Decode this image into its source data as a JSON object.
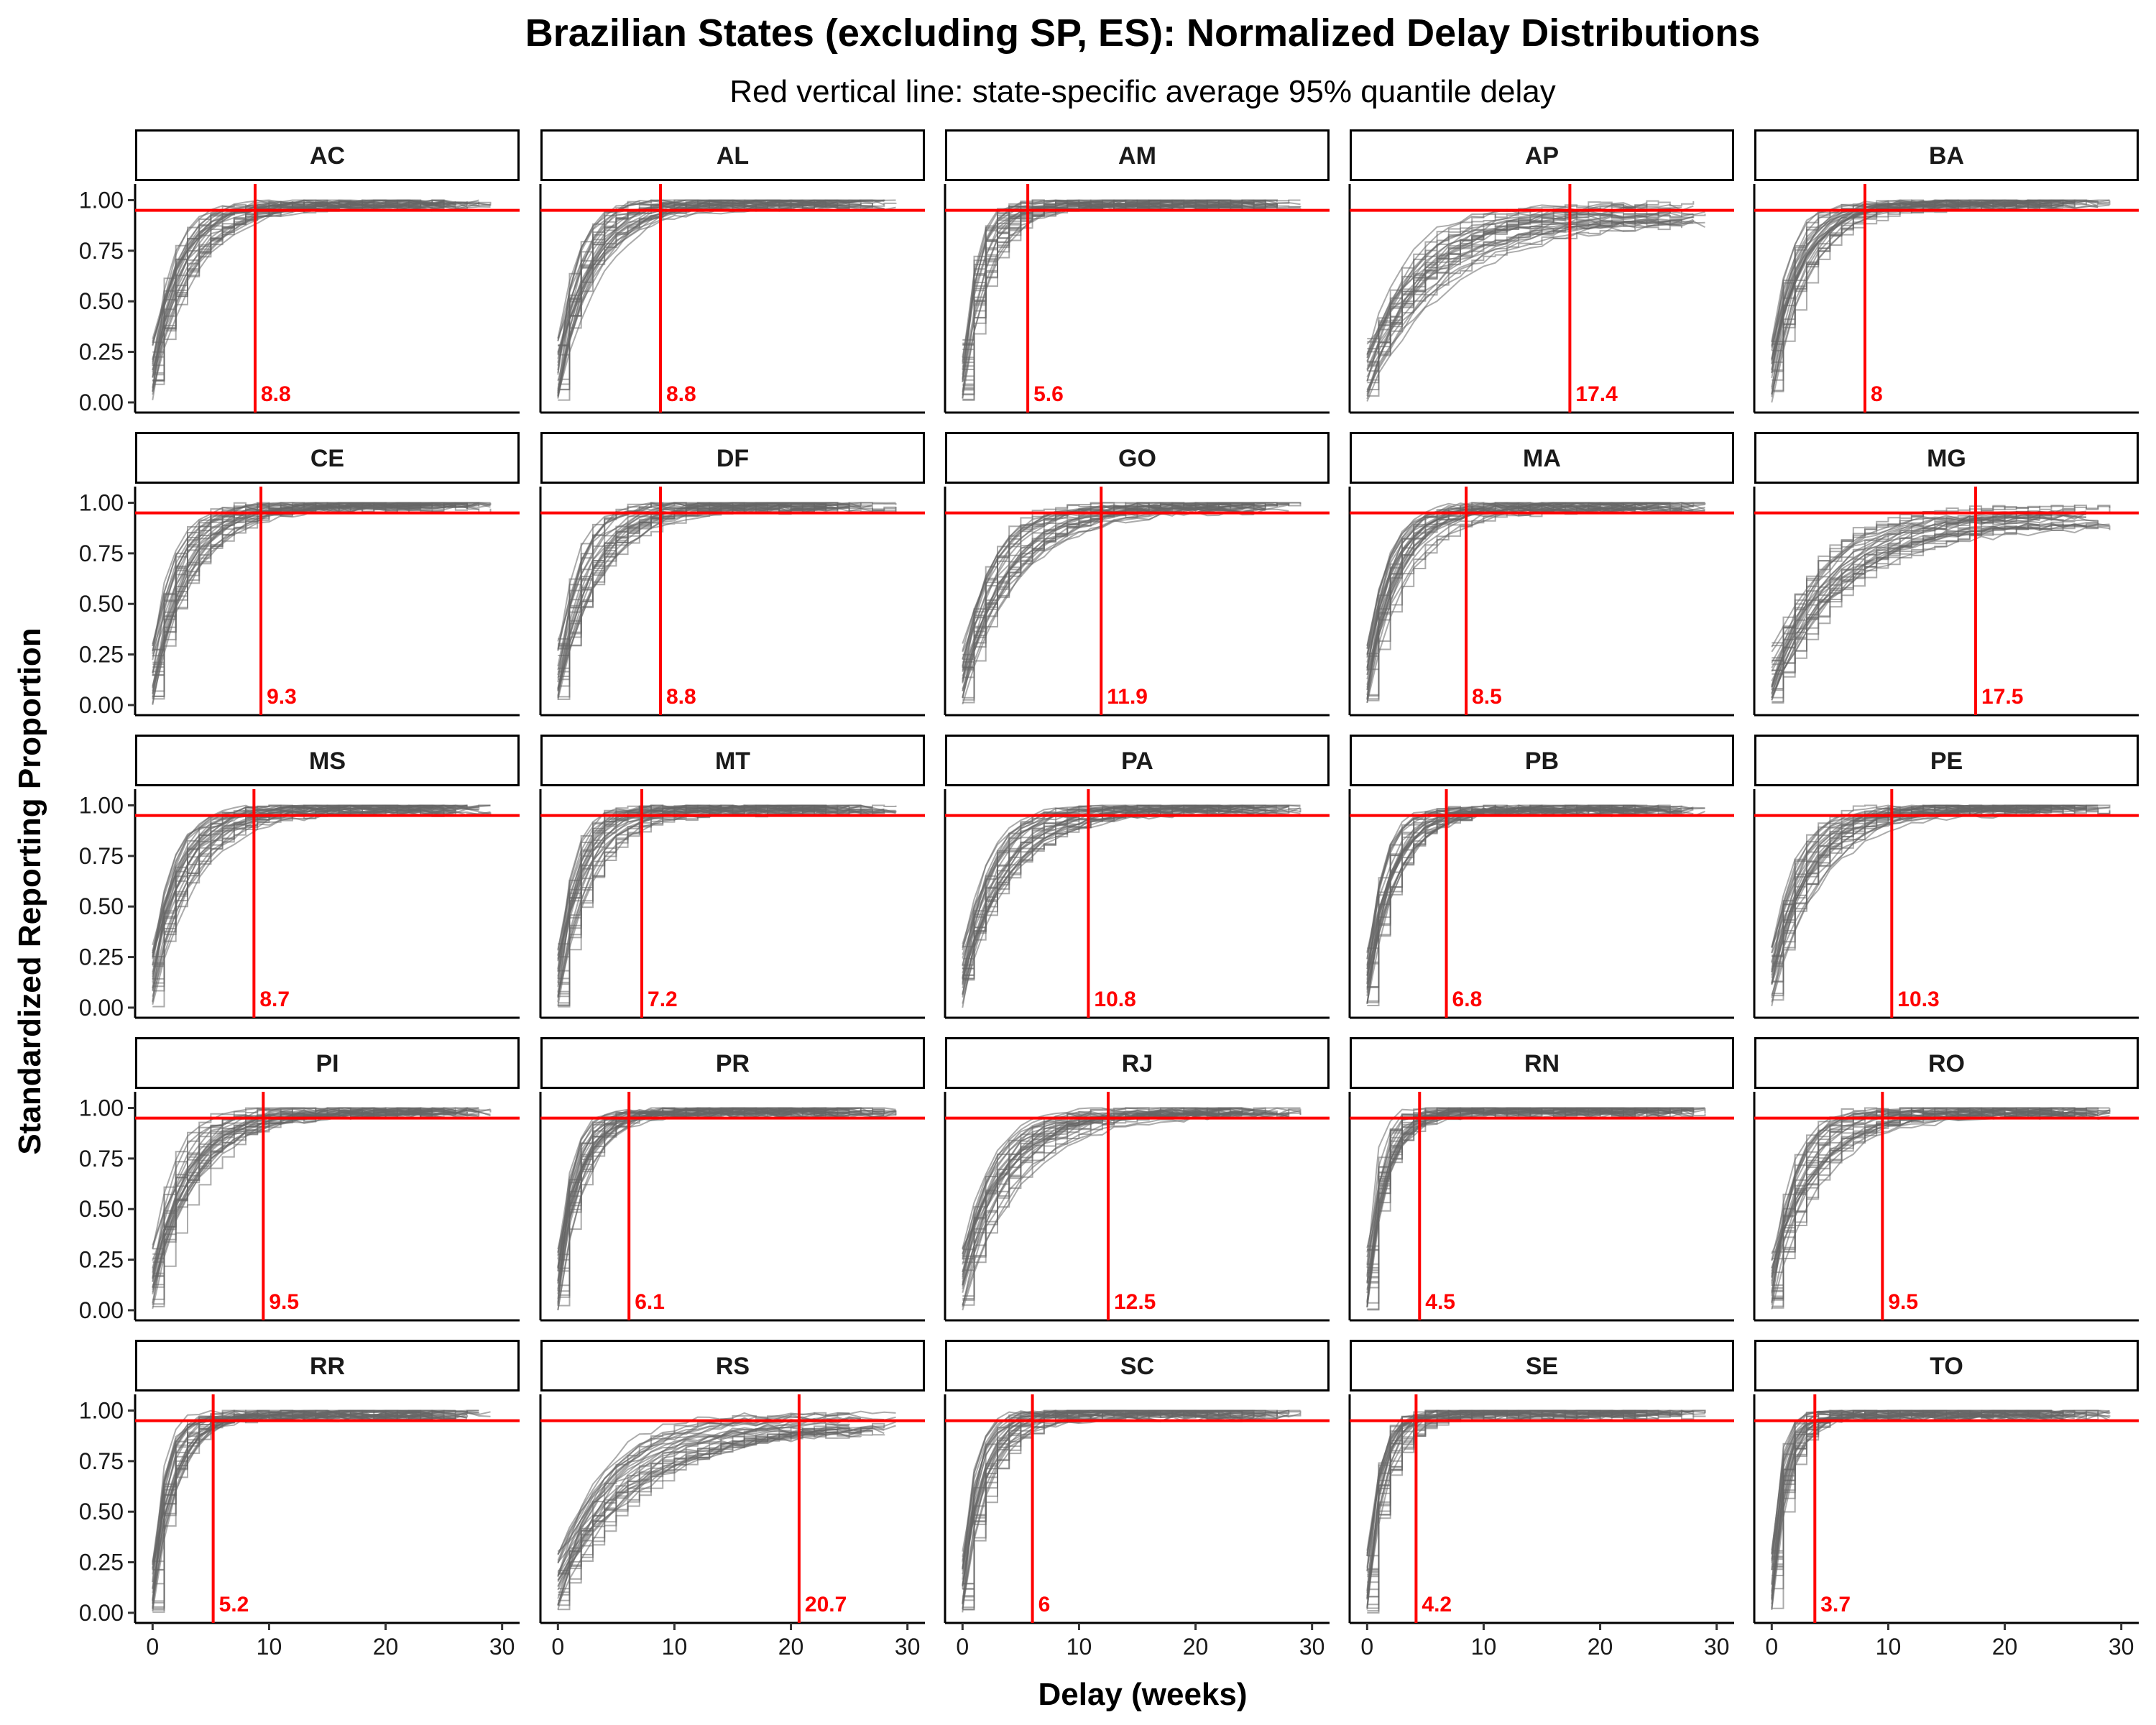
{
  "chart_data": {
    "type": "line",
    "title": "Brazilian States (excluding SP, ES): Normalized Delay Distributions",
    "subtitle": "Red vertical line: state-specific average 95% quantile delay",
    "xlabel": "Delay (weeks)",
    "ylabel": "Standardized Reporting Proportion",
    "xlim": [
      -1.5,
      31.5
    ],
    "ylim": [
      -0.05,
      1.08
    ],
    "x_ticks": [
      0,
      10,
      20,
      30
    ],
    "x_tick_labels": [
      "0",
      "10",
      "20",
      "30"
    ],
    "y_ticks": [
      0,
      0.25,
      0.5,
      0.75,
      1
    ],
    "y_tick_labels": [
      "0.00",
      "0.25",
      "0.50",
      "0.75",
      "1.00"
    ],
    "reference_line_y": 0.95,
    "line_color": "#666666",
    "reference_color": "#ff0000",
    "grid": false,
    "layout": "5x5 facets",
    "panels": [
      {
        "state": "AC",
        "q95": 8.8,
        "q95_label": "8.8"
      },
      {
        "state": "AL",
        "q95": 8.8,
        "q95_label": "8.8"
      },
      {
        "state": "AM",
        "q95": 5.6,
        "q95_label": "5.6"
      },
      {
        "state": "AP",
        "q95": 17.4,
        "q95_label": "17.4"
      },
      {
        "state": "BA",
        "q95": 8.0,
        "q95_label": "8"
      },
      {
        "state": "CE",
        "q95": 9.3,
        "q95_label": "9.3"
      },
      {
        "state": "DF",
        "q95": 8.8,
        "q95_label": "8.8"
      },
      {
        "state": "GO",
        "q95": 11.9,
        "q95_label": "11.9"
      },
      {
        "state": "MA",
        "q95": 8.5,
        "q95_label": "8.5"
      },
      {
        "state": "MG",
        "q95": 17.5,
        "q95_label": "17.5"
      },
      {
        "state": "MS",
        "q95": 8.7,
        "q95_label": "8.7"
      },
      {
        "state": "MT",
        "q95": 7.2,
        "q95_label": "7.2"
      },
      {
        "state": "PA",
        "q95": 10.8,
        "q95_label": "10.8"
      },
      {
        "state": "PB",
        "q95": 6.8,
        "q95_label": "6.8"
      },
      {
        "state": "PE",
        "q95": 10.3,
        "q95_label": "10.3"
      },
      {
        "state": "PI",
        "q95": 9.5,
        "q95_label": "9.5"
      },
      {
        "state": "PR",
        "q95": 6.1,
        "q95_label": "6.1"
      },
      {
        "state": "RJ",
        "q95": 12.5,
        "q95_label": "12.5"
      },
      {
        "state": "RN",
        "q95": 4.5,
        "q95_label": "4.5"
      },
      {
        "state": "RO",
        "q95": 9.5,
        "q95_label": "9.5"
      },
      {
        "state": "RR",
        "q95": 5.2,
        "q95_label": "5.2"
      },
      {
        "state": "RS",
        "q95": 20.7,
        "q95_label": "20.7"
      },
      {
        "state": "SC",
        "q95": 6.0,
        "q95_label": "6"
      },
      {
        "state": "SE",
        "q95": 4.2,
        "q95_label": "4.2"
      },
      {
        "state": "TO",
        "q95": 3.7,
        "q95_label": "3.7"
      }
    ]
  }
}
